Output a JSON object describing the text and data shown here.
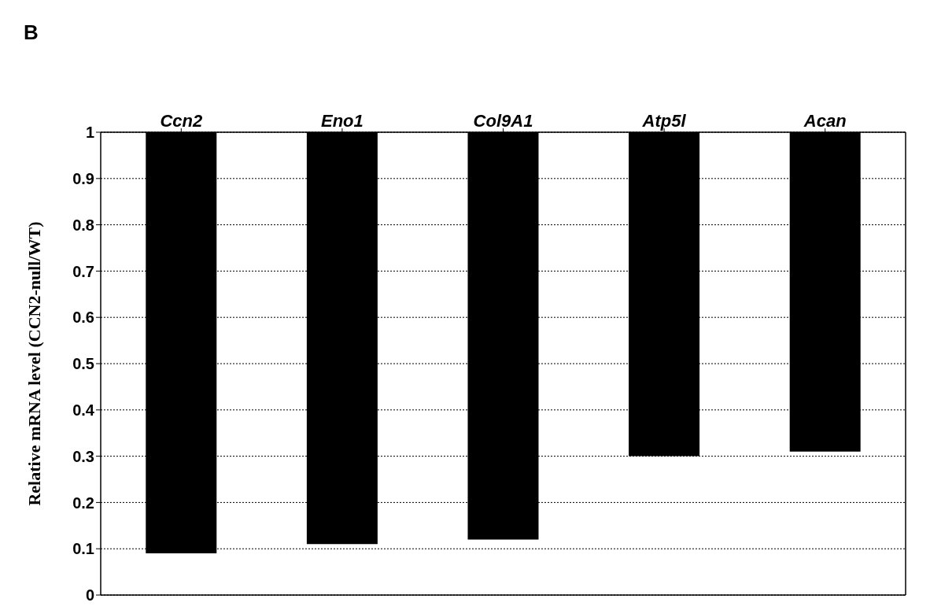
{
  "chart_data": {
    "type": "bar",
    "ylabel": "Relative mRNA level (CCN2-null/WT)",
    "annotations": [
      "B"
    ],
    "categories": [
      "Ccn2",
      "Eno1",
      "Col9A1",
      "Atp5l",
      "Acan"
    ],
    "base": [
      1,
      1,
      1,
      1,
      1
    ],
    "values": [
      -0.91,
      -0.89,
      -0.88,
      -0.7,
      -0.69
    ],
    "color": "#000000",
    "ylim": [
      0,
      1
    ],
    "yticks": [
      0,
      0.1,
      0.2,
      0.3,
      0.4,
      0.5,
      0.6,
      0.7,
      0.8,
      0.9,
      1
    ],
    "grid": "y",
    "legend": false
  }
}
